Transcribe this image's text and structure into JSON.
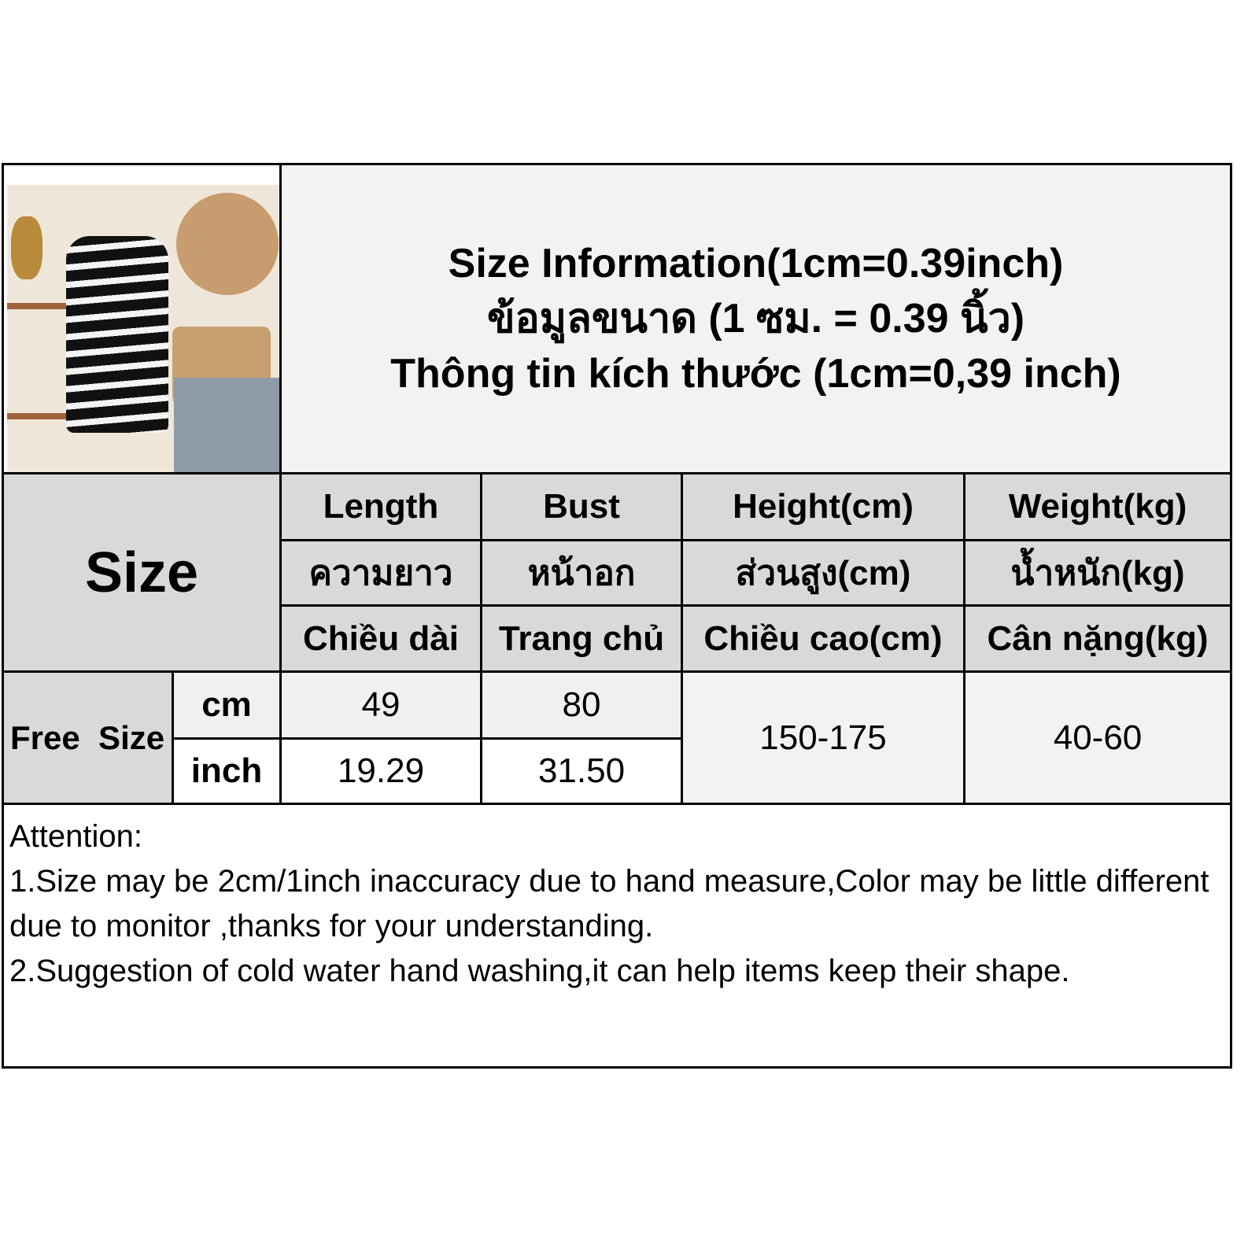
{
  "title": {
    "en": "Size Information(1cm=0.39inch)",
    "th": "ข้อมูลขนาด (1 ซม. = 0.39 นิ้ว)",
    "vi": "Thông tin kích thước (1cm=0,39 inch)"
  },
  "size_label": "Size",
  "columns": [
    {
      "en": "Length",
      "th": "ความยาว",
      "vi": "Chiều dài"
    },
    {
      "en": "Bust",
      "th": "หน้าอก",
      "vi": "Trang chủ"
    },
    {
      "en": "Height(cm)",
      "th": "ส่วนสูง(cm)",
      "vi": "Chiều cao(cm)"
    },
    {
      "en": "Weight(kg)",
      "th": "น้ำหนัก(kg)",
      "vi": "Cân nặng(kg)"
    }
  ],
  "rows": {
    "size_name": "Free  Size",
    "cm_label": "cm",
    "inch_label": "inch",
    "length_cm": "49",
    "bust_cm": "80",
    "length_inch": "19.29",
    "bust_inch": "31.50",
    "height": "150-175",
    "weight": "40-60"
  },
  "attention": {
    "heading": "Attention:",
    "note1": "1.Size may be 2cm/1inch inaccuracy due to hand measure,Color may be little different due to monitor ,thanks for your understanding.",
    "note2": "2.Suggestion of cold water hand washing,it can help items keep their shape."
  }
}
